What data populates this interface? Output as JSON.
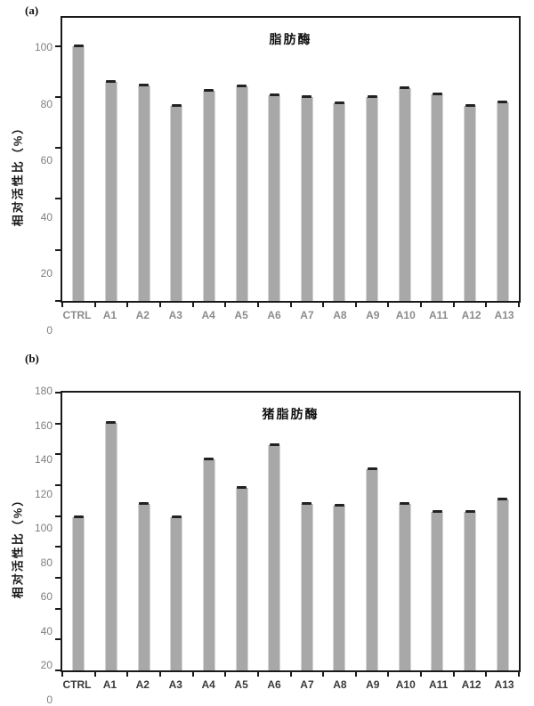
{
  "colors": {
    "bar_fill": "#a8a8a8",
    "error_cap": "#222222",
    "axis": "#1a1a1a",
    "ytick_label": "#7f7f7f",
    "background": "#ffffff"
  },
  "chart_data": [
    {
      "type": "bar",
      "panel_label": "(a)",
      "title": "脂肪酶",
      "ylabel": "相对活性比（%）",
      "xlabel": "",
      "categories": [
        "CTRL",
        "A1",
        "A2",
        "A3",
        "A4",
        "A5",
        "A6",
        "A7",
        "A8",
        "A9",
        "A10",
        "A11",
        "A12",
        "A13"
      ],
      "values": [
        100,
        86,
        84.5,
        76.5,
        82.5,
        84,
        80.5,
        80,
        77.5,
        80,
        83.5,
        81,
        76.5,
        78
      ],
      "error_bars": 1,
      "yticks": [
        0,
        20,
        40,
        60,
        80,
        100
      ],
      "ylim": [
        0,
        111
      ],
      "grid": "off",
      "legend": "none",
      "x_label_color": "#8c8c8c"
    },
    {
      "type": "bar",
      "panel_label": "(b)",
      "title": "猪脂肪酶",
      "ylabel": "相对活性比（%）",
      "xlabel": "",
      "categories": [
        "CTRL",
        "A1",
        "A2",
        "A3",
        "A4",
        "A5",
        "A6",
        "A7",
        "A8",
        "A9",
        "A10",
        "A11",
        "A12",
        "A13"
      ],
      "values": [
        99.5,
        160.5,
        108,
        99.5,
        137,
        118,
        146,
        108,
        107,
        130.5,
        108,
        102.5,
        102.5,
        111
      ],
      "error_bars": 1,
      "yticks": [
        0,
        20,
        40,
        60,
        80,
        100,
        120,
        140,
        160,
        180
      ],
      "ylim": [
        0,
        180
      ],
      "grid": "off",
      "legend": "none",
      "x_label_color": "#3a3a3a"
    }
  ]
}
